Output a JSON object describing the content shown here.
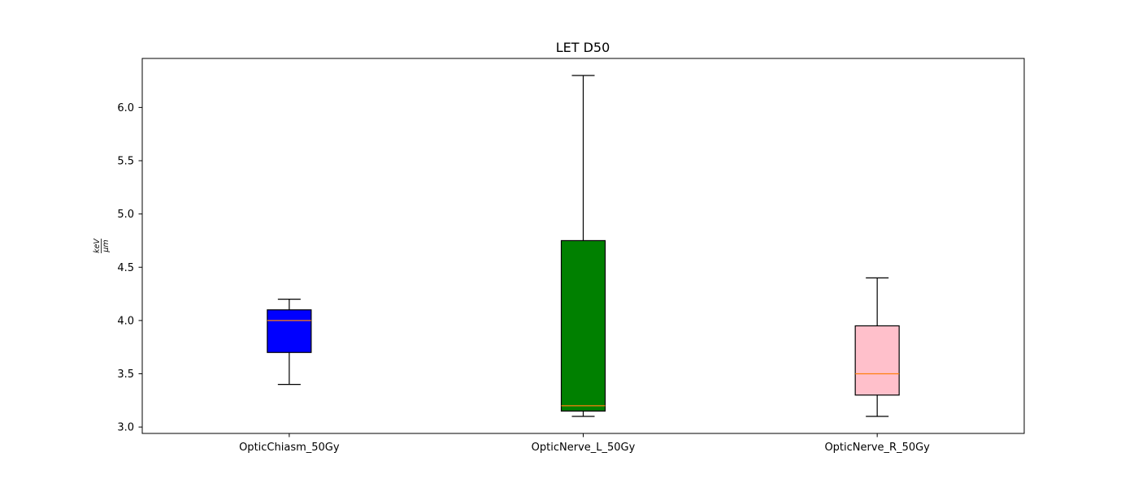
{
  "chart_data": {
    "type": "boxplot",
    "title": "LET D50",
    "xlabel": "",
    "ylabel": {
      "numerator": "keV",
      "denominator": "μm"
    },
    "ylim": [
      2.94,
      6.46
    ],
    "yticks": [
      3.0,
      3.5,
      4.0,
      4.5,
      5.0,
      5.5,
      6.0
    ],
    "ytick_labels": [
      "3.0",
      "3.5",
      "4.0",
      "4.5",
      "5.0",
      "5.5",
      "6.0"
    ],
    "grid": false,
    "categories": [
      "OpticChiasm_50Gy",
      "OpticNerve_L_50Gy",
      "OpticNerve_R_50Gy"
    ],
    "boxes": [
      {
        "category": "OpticChiasm_50Gy",
        "whisker_low": 3.4,
        "q1": 3.7,
        "median": 4.0,
        "q3": 4.1,
        "whisker_high": 4.2,
        "fill": "#0000ff"
      },
      {
        "category": "OpticNerve_L_50Gy",
        "whisker_low": 3.1,
        "q1": 3.15,
        "median": 3.2,
        "q3": 4.75,
        "whisker_high": 6.3,
        "fill": "#008000"
      },
      {
        "category": "OpticNerve_R_50Gy",
        "whisker_low": 3.1,
        "q1": 3.3,
        "median": 3.5,
        "q3": 3.95,
        "whisker_high": 4.4,
        "fill": "#ffc0cb"
      }
    ],
    "median_color": "#ff7f0e"
  }
}
